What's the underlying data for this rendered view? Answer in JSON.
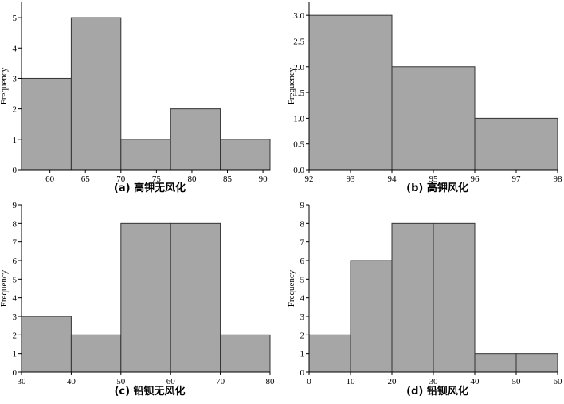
{
  "chart_data": [
    {
      "type": "bar",
      "title": "(a) 高钾无风化",
      "xlabel": "",
      "ylabel": "Frequency",
      "bin_edges": [
        56,
        63,
        70,
        77,
        84,
        91
      ],
      "values": [
        3,
        5,
        1,
        2,
        1
      ],
      "xlim": [
        56,
        91
      ],
      "ylim": [
        0,
        5.5
      ],
      "xticks": [
        60,
        65,
        70,
        75,
        80,
        85,
        90
      ],
      "yticks": [
        0,
        1,
        2,
        3,
        4,
        5
      ],
      "ytick_labels": [
        "0",
        "1",
        "2",
        "3",
        "4",
        "5"
      ],
      "bar_color": "#a6a6a6"
    },
    {
      "type": "bar",
      "title": "(b) 高钾风化",
      "xlabel": "",
      "ylabel": "Frequency",
      "bin_edges": [
        92,
        94,
        96,
        98
      ],
      "values": [
        3,
        2,
        1
      ],
      "xlim": [
        92,
        98
      ],
      "ylim": [
        0,
        3.25
      ],
      "xticks": [
        92,
        93,
        94,
        95,
        96,
        97,
        98
      ],
      "yticks": [
        0,
        0.5,
        1,
        1.5,
        2,
        2.5,
        3
      ],
      "ytick_labels": [
        "0.0",
        "0.5",
        "1.0",
        "1.5",
        "2.0",
        "2.5",
        "3.0"
      ],
      "bar_color": "#a6a6a6"
    },
    {
      "type": "bar",
      "title": "(c) 铅钡无风化",
      "xlabel": "",
      "ylabel": "Frequency",
      "bin_edges": [
        30,
        40,
        50,
        60,
        70,
        80
      ],
      "values": [
        3,
        2,
        8,
        8,
        2
      ],
      "xlim": [
        30,
        80
      ],
      "ylim": [
        0,
        9
      ],
      "xticks": [
        30,
        40,
        50,
        60,
        70,
        80
      ],
      "yticks": [
        0,
        1,
        2,
        3,
        4,
        5,
        6,
        7,
        8,
        9
      ],
      "ytick_labels": [
        "0",
        "1",
        "2",
        "3",
        "4",
        "5",
        "6",
        "7",
        "8",
        "9"
      ],
      "bar_color": "#a6a6a6"
    },
    {
      "type": "bar",
      "title": "(d) 铅钡风化",
      "xlabel": "",
      "ylabel": "Frequency",
      "bin_edges": [
        0,
        10,
        20,
        30,
        40,
        50,
        60
      ],
      "values": [
        2,
        6,
        8,
        8,
        1,
        1
      ],
      "xlim": [
        0,
        60
      ],
      "ylim": [
        0,
        9
      ],
      "xticks": [
        0,
        10,
        20,
        30,
        40,
        50,
        60
      ],
      "yticks": [
        0,
        1,
        2,
        3,
        4,
        5,
        6,
        7,
        8,
        9
      ],
      "ytick_labels": [
        "0",
        "1",
        "2",
        "3",
        "4",
        "5",
        "6",
        "7",
        "8",
        "9"
      ],
      "bar_color": "#a6a6a6"
    }
  ]
}
